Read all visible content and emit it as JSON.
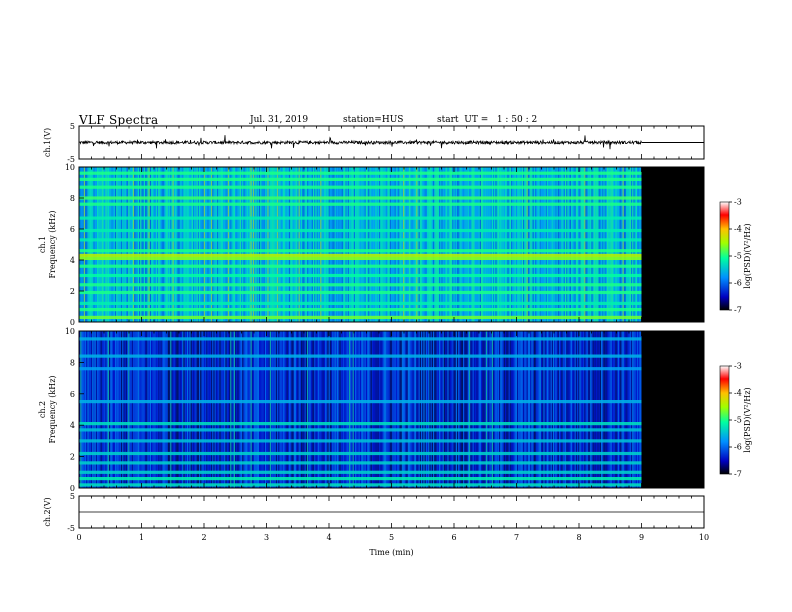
{
  "header": {
    "title": "VLF Spectra",
    "date": "Jul. 31, 2019",
    "station": "station=HUS",
    "start": "start  UT =   1 : 50 : 2"
  },
  "chart_data": [
    {
      "type": "line",
      "panel": "ch1_voltage",
      "ylabel": "ch.1(V)",
      "ylim": [
        -5,
        5
      ],
      "yticks": [
        "5",
        "-5"
      ],
      "xlim": [
        0,
        10
      ],
      "data_end_min": 9.0,
      "baseline_value": 0.0,
      "after_end_value": 0.0
    },
    {
      "type": "heatmap",
      "panel": "ch1_spectrogram",
      "ylabel": "ch.1\nFrequency (kHz)",
      "ylim": [
        0,
        10
      ],
      "yticks": [
        "0",
        "2",
        "4",
        "6",
        "8",
        "10"
      ],
      "xlim": [
        0,
        10
      ],
      "data_end_min": 9.0,
      "background_level": -5.6,
      "bands": [
        {
          "freq_khz": 9.6,
          "level": -5.0
        },
        {
          "freq_khz": 9.2,
          "level": -5.0
        },
        {
          "freq_khz": 8.7,
          "level": -5.0
        },
        {
          "freq_khz": 8.0,
          "level": -4.9
        },
        {
          "freq_khz": 7.6,
          "level": -5.0
        },
        {
          "freq_khz": 6.7,
          "level": -5.2
        },
        {
          "freq_khz": 5.9,
          "level": -5.2
        },
        {
          "freq_khz": 5.3,
          "level": -5.2
        },
        {
          "freq_khz": 4.6,
          "level": -5.0
        },
        {
          "freq_khz": 4.3,
          "level": -4.4
        },
        {
          "freq_khz": 4.1,
          "level": -4.6
        },
        {
          "freq_khz": 3.6,
          "level": -5.0
        },
        {
          "freq_khz": 3.0,
          "level": -5.1
        },
        {
          "freq_khz": 2.4,
          "level": -5.0
        },
        {
          "freq_khz": 1.9,
          "level": -5.0
        },
        {
          "freq_khz": 1.2,
          "level": -5.2
        },
        {
          "freq_khz": 0.8,
          "level": -5.0
        },
        {
          "freq_khz": 0.3,
          "level": -4.7
        }
      ],
      "colorbar": {
        "label": "log(PSD)(V²/Hz)",
        "ticks": [
          "-3",
          "-4",
          "-5",
          "-6",
          "-7"
        ],
        "range": [
          -7,
          -3
        ]
      }
    },
    {
      "type": "heatmap",
      "panel": "ch2_spectrogram",
      "ylabel": "ch.2\nFrequency (kHz)",
      "ylim": [
        0,
        10
      ],
      "yticks": [
        "0",
        "2",
        "4",
        "6",
        "8",
        "10"
      ],
      "xlim": [
        0,
        10
      ],
      "data_end_min": 9.0,
      "background_level": -6.3,
      "bands": [
        {
          "freq_khz": 9.5,
          "level": -5.6
        },
        {
          "freq_khz": 8.4,
          "level": -5.6
        },
        {
          "freq_khz": 7.6,
          "level": -5.7
        },
        {
          "freq_khz": 5.5,
          "level": -5.6
        },
        {
          "freq_khz": 4.1,
          "level": -5.3
        },
        {
          "freq_khz": 3.7,
          "level": -5.5
        },
        {
          "freq_khz": 3.0,
          "level": -5.5
        },
        {
          "freq_khz": 2.2,
          "level": -5.4
        },
        {
          "freq_khz": 1.6,
          "level": -5.4
        },
        {
          "freq_khz": 1.0,
          "level": -5.4
        },
        {
          "freq_khz": 0.6,
          "level": -5.2
        },
        {
          "freq_khz": 0.2,
          "level": -5.3
        }
      ],
      "colorbar": {
        "label": "log(PSD)(V²/Hz)",
        "ticks": [
          "-3",
          "-4",
          "-5",
          "-6",
          "-7"
        ],
        "range": [
          -7,
          -3
        ]
      }
    },
    {
      "type": "line",
      "panel": "ch2_voltage",
      "ylabel": "ch.2(V)",
      "ylim": [
        -5,
        5
      ],
      "yticks": [
        "5",
        "-5"
      ],
      "xlim": [
        0,
        10
      ],
      "xlabel": "Time (min)",
      "xticks": [
        "0",
        "1",
        "2",
        "3",
        "4",
        "5",
        "6",
        "7",
        "8",
        "9",
        "10"
      ],
      "baseline_value": 0.0
    }
  ]
}
